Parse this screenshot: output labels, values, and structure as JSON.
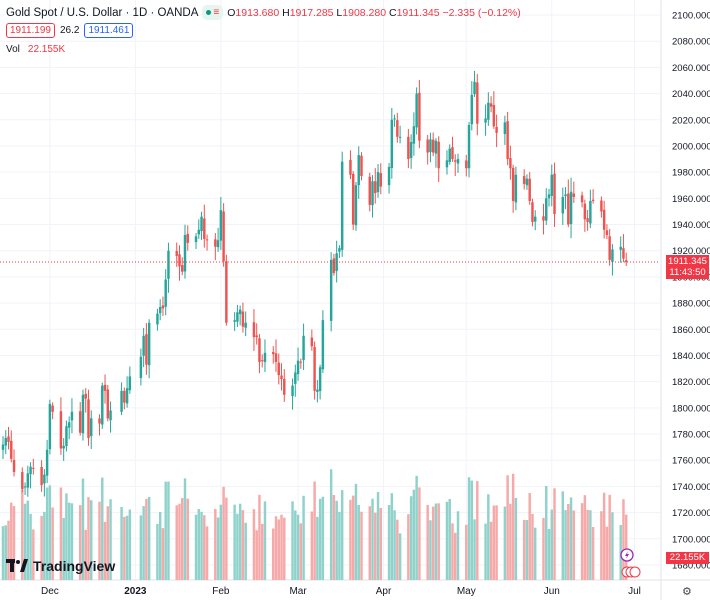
{
  "header": {
    "title": "Gold Spot / U.S. Dollar · 1D · OANDA",
    "market_icons": [
      "market-open-icon",
      "currency-icon"
    ],
    "ohlc": {
      "o_label": "O",
      "o": "1913.680",
      "h_label": "H",
      "h": "1917.285",
      "l_label": "L",
      "l": "1908.280",
      "c_label": "C",
      "c": "1911.345",
      "change": "−2.335 (−0.12%)"
    },
    "sell_price": "1911.199",
    "spread": "26.2",
    "buy_price": "1911.461",
    "vol_label": "Vol",
    "vol_value": "22.155K"
  },
  "price_tag": {
    "price": "1911.345",
    "countdown": "11:43:50"
  },
  "volume_tag": "22.155K",
  "logo_text": "TradingView",
  "colors": {
    "up": "#26a69a",
    "down": "#ef5350",
    "up_vol": "#8fd2cb",
    "down_vol": "#f5a9a8",
    "grid": "#f0f3fa",
    "last": "#f23645"
  },
  "chart_data": {
    "type": "candlestick",
    "symbol": "XAUUSD",
    "interval": "1D",
    "y_ticks": [
      "2100.000",
      "2080.000",
      "2060.000",
      "2040.000",
      "2020.000",
      "2000.000",
      "1980.000",
      "1960.000",
      "1940.000",
      "1920.000",
      "1900.000",
      "1880.000",
      "1860.000",
      "1840.000",
      "1820.000",
      "1800.000",
      "1780.000",
      "1760.000",
      "1740.000",
      "1720.000",
      "1700.000",
      "1680.000"
    ],
    "ylim": [
      1680,
      2100
    ],
    "x_ticks": [
      {
        "label": "Dec",
        "date": "2022-12-01"
      },
      {
        "label": "2023",
        "date": "2023-01-01",
        "bold": true
      },
      {
        "label": "Feb",
        "date": "2023-02-01"
      },
      {
        "label": "Mar",
        "date": "2023-03-01"
      },
      {
        "label": "Apr",
        "date": "2023-04-01"
      },
      {
        "label": "May",
        "date": "2023-05-01"
      },
      {
        "label": "Jun",
        "date": "2023-06-01"
      },
      {
        "label": "Jul",
        "date": "2023-07-01"
      }
    ],
    "x_range": [
      "2022-11-14",
      "2023-07-03"
    ],
    "last_price": 1911.345,
    "closes": [
      {
        "date": "2022-11-14",
        "close": 1772
      },
      {
        "date": "2022-11-15",
        "close": 1777
      },
      {
        "date": "2022-11-16",
        "close": 1774
      },
      {
        "date": "2022-11-17",
        "close": 1761
      },
      {
        "date": "2022-11-18",
        "close": 1751
      },
      {
        "date": "2022-11-21",
        "close": 1738
      },
      {
        "date": "2022-11-22",
        "close": 1740
      },
      {
        "date": "2022-11-23",
        "close": 1750
      },
      {
        "date": "2022-11-24",
        "close": 1755
      },
      {
        "date": "2022-11-25",
        "close": 1754
      },
      {
        "date": "2022-11-28",
        "close": 1741
      },
      {
        "date": "2022-11-29",
        "close": 1749
      },
      {
        "date": "2022-11-30",
        "close": 1768
      },
      {
        "date": "2022-12-01",
        "close": 1803
      },
      {
        "date": "2022-12-02",
        "close": 1797
      },
      {
        "date": "2022-12-05",
        "close": 1769
      },
      {
        "date": "2022-12-06",
        "close": 1771
      },
      {
        "date": "2022-12-07",
        "close": 1786
      },
      {
        "date": "2022-12-08",
        "close": 1789
      },
      {
        "date": "2022-12-09",
        "close": 1797
      },
      {
        "date": "2022-12-12",
        "close": 1781
      },
      {
        "date": "2022-12-13",
        "close": 1810
      },
      {
        "date": "2022-12-14",
        "close": 1807
      },
      {
        "date": "2022-12-15",
        "close": 1777
      },
      {
        "date": "2022-12-16",
        "close": 1792
      },
      {
        "date": "2022-12-19",
        "close": 1788
      },
      {
        "date": "2022-12-20",
        "close": 1817
      },
      {
        "date": "2022-12-21",
        "close": 1813
      },
      {
        "date": "2022-12-22",
        "close": 1792
      },
      {
        "date": "2022-12-23",
        "close": 1798
      },
      {
        "date": "2022-12-27",
        "close": 1813
      },
      {
        "date": "2022-12-28",
        "close": 1804
      },
      {
        "date": "2022-12-29",
        "close": 1815
      },
      {
        "date": "2022-12-30",
        "close": 1824
      },
      {
        "date": "2023-01-03",
        "close": 1839
      },
      {
        "date": "2023-01-04",
        "close": 1855
      },
      {
        "date": "2023-01-05",
        "close": 1833
      },
      {
        "date": "2023-01-06",
        "close": 1865
      },
      {
        "date": "2023-01-09",
        "close": 1872
      },
      {
        "date": "2023-01-10",
        "close": 1877
      },
      {
        "date": "2023-01-11",
        "close": 1876
      },
      {
        "date": "2023-01-12",
        "close": 1898
      },
      {
        "date": "2023-01-13",
        "close": 1920
      },
      {
        "date": "2023-01-16",
        "close": 1916
      },
      {
        "date": "2023-01-17",
        "close": 1908
      },
      {
        "date": "2023-01-18",
        "close": 1904
      },
      {
        "date": "2023-01-19",
        "close": 1932
      },
      {
        "date": "2023-01-20",
        "close": 1926
      },
      {
        "date": "2023-01-23",
        "close": 1931
      },
      {
        "date": "2023-01-24",
        "close": 1936
      },
      {
        "date": "2023-01-25",
        "close": 1946
      },
      {
        "date": "2023-01-26",
        "close": 1929
      },
      {
        "date": "2023-01-27",
        "close": 1928
      },
      {
        "date": "2023-01-30",
        "close": 1923
      },
      {
        "date": "2023-01-31",
        "close": 1928
      },
      {
        "date": "2023-02-01",
        "close": 1951
      },
      {
        "date": "2023-02-02",
        "close": 1912
      },
      {
        "date": "2023-02-03",
        "close": 1865
      },
      {
        "date": "2023-02-06",
        "close": 1867
      },
      {
        "date": "2023-02-07",
        "close": 1873
      },
      {
        "date": "2023-02-08",
        "close": 1875
      },
      {
        "date": "2023-02-09",
        "close": 1862
      },
      {
        "date": "2023-02-10",
        "close": 1865
      },
      {
        "date": "2023-02-13",
        "close": 1854
      },
      {
        "date": "2023-02-14",
        "close": 1854
      },
      {
        "date": "2023-02-15",
        "close": 1835
      },
      {
        "date": "2023-02-16",
        "close": 1836
      },
      {
        "date": "2023-02-17",
        "close": 1842
      },
      {
        "date": "2023-02-20",
        "close": 1841
      },
      {
        "date": "2023-02-21",
        "close": 1835
      },
      {
        "date": "2023-02-22",
        "close": 1825
      },
      {
        "date": "2023-02-23",
        "close": 1822
      },
      {
        "date": "2023-02-24",
        "close": 1810
      },
      {
        "date": "2023-02-27",
        "close": 1817
      },
      {
        "date": "2023-02-28",
        "close": 1827
      },
      {
        "date": "2023-03-01",
        "close": 1836
      },
      {
        "date": "2023-03-02",
        "close": 1835
      },
      {
        "date": "2023-03-03",
        "close": 1855
      },
      {
        "date": "2023-03-06",
        "close": 1847
      },
      {
        "date": "2023-03-07",
        "close": 1813
      },
      {
        "date": "2023-03-08",
        "close": 1814
      },
      {
        "date": "2023-03-09",
        "close": 1831
      },
      {
        "date": "2023-03-10",
        "close": 1867
      },
      {
        "date": "2023-03-13",
        "close": 1913
      },
      {
        "date": "2023-03-14",
        "close": 1903
      },
      {
        "date": "2023-03-15",
        "close": 1918
      },
      {
        "date": "2023-03-16",
        "close": 1922
      },
      {
        "date": "2023-03-17",
        "close": 1988
      },
      {
        "date": "2023-03-20",
        "close": 1978
      },
      {
        "date": "2023-03-21",
        "close": 1940
      },
      {
        "date": "2023-03-22",
        "close": 1970
      },
      {
        "date": "2023-03-23",
        "close": 1993
      },
      {
        "date": "2023-03-24",
        "close": 1977
      },
      {
        "date": "2023-03-27",
        "close": 1955
      },
      {
        "date": "2023-03-28",
        "close": 1973
      },
      {
        "date": "2023-03-29",
        "close": 1964
      },
      {
        "date": "2023-03-30",
        "close": 1980
      },
      {
        "date": "2023-03-31",
        "close": 1969
      },
      {
        "date": "2023-04-03",
        "close": 1984
      },
      {
        "date": "2023-04-04",
        "close": 2020
      },
      {
        "date": "2023-04-05",
        "close": 2021
      },
      {
        "date": "2023-04-06",
        "close": 2007
      },
      {
        "date": "2023-04-07",
        "close": 2007
      },
      {
        "date": "2023-04-10",
        "close": 1990
      },
      {
        "date": "2023-04-11",
        "close": 2003
      },
      {
        "date": "2023-04-12",
        "close": 2015
      },
      {
        "date": "2023-04-13",
        "close": 2040
      },
      {
        "date": "2023-04-14",
        "close": 2004
      },
      {
        "date": "2023-04-17",
        "close": 1995
      },
      {
        "date": "2023-04-18",
        "close": 2005
      },
      {
        "date": "2023-04-19",
        "close": 1995
      },
      {
        "date": "2023-04-20",
        "close": 2004
      },
      {
        "date": "2023-04-21",
        "close": 1983
      },
      {
        "date": "2023-04-24",
        "close": 1989
      },
      {
        "date": "2023-04-25",
        "close": 1998
      },
      {
        "date": "2023-04-26",
        "close": 1990
      },
      {
        "date": "2023-04-27",
        "close": 1988
      },
      {
        "date": "2023-04-28",
        "close": 1990
      },
      {
        "date": "2023-05-01",
        "close": 1983
      },
      {
        "date": "2023-05-02",
        "close": 2016
      },
      {
        "date": "2023-05-03",
        "close": 2039
      },
      {
        "date": "2023-05-04",
        "close": 2049
      },
      {
        "date": "2023-05-05",
        "close": 2017
      },
      {
        "date": "2023-05-08",
        "close": 2021
      },
      {
        "date": "2023-05-09",
        "close": 2033
      },
      {
        "date": "2023-05-10",
        "close": 2030
      },
      {
        "date": "2023-05-11",
        "close": 2015
      },
      {
        "date": "2023-05-12",
        "close": 2010
      },
      {
        "date": "2023-05-15",
        "close": 2018
      },
      {
        "date": "2023-05-16",
        "close": 1990
      },
      {
        "date": "2023-05-17",
        "close": 1983
      },
      {
        "date": "2023-05-18",
        "close": 1958
      },
      {
        "date": "2023-05-19",
        "close": 1978
      },
      {
        "date": "2023-05-22",
        "close": 1971
      },
      {
        "date": "2023-05-23",
        "close": 1975
      },
      {
        "date": "2023-05-24",
        "close": 1958
      },
      {
        "date": "2023-05-25",
        "close": 1942
      },
      {
        "date": "2023-05-26",
        "close": 1946
      },
      {
        "date": "2023-05-29",
        "close": 1943
      },
      {
        "date": "2023-05-30",
        "close": 1960
      },
      {
        "date": "2023-05-31",
        "close": 1963
      },
      {
        "date": "2023-06-01",
        "close": 1978
      },
      {
        "date": "2023-06-02",
        "close": 1948
      },
      {
        "date": "2023-06-05",
        "close": 1961
      },
      {
        "date": "2023-06-06",
        "close": 1963
      },
      {
        "date": "2023-06-07",
        "close": 1940
      },
      {
        "date": "2023-06-08",
        "close": 1965
      },
      {
        "date": "2023-06-09",
        "close": 1961
      },
      {
        "date": "2023-06-12",
        "close": 1957
      },
      {
        "date": "2023-06-13",
        "close": 1944
      },
      {
        "date": "2023-06-14",
        "close": 1942
      },
      {
        "date": "2023-06-15",
        "close": 1958
      },
      {
        "date": "2023-06-16",
        "close": 1958
      },
      {
        "date": "2023-06-19",
        "close": 1950
      },
      {
        "date": "2023-06-20",
        "close": 1936
      },
      {
        "date": "2023-06-21",
        "close": 1932
      },
      {
        "date": "2023-06-22",
        "close": 1913
      },
      {
        "date": "2023-06-23",
        "close": 1921
      },
      {
        "date": "2023-06-26",
        "close": 1923
      },
      {
        "date": "2023-06-27",
        "close": 1914
      },
      {
        "date": "2023-06-28",
        "close": 1911.345
      }
    ]
  }
}
